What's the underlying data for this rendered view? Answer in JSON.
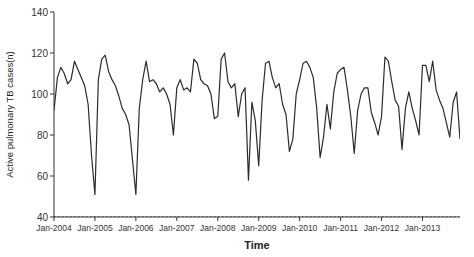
{
  "chart_data": {
    "type": "line",
    "xlabel": "Time",
    "ylabel": "Active pulmonary TB cases(n)",
    "categories": [
      "Jan-2004",
      null,
      null,
      null,
      null,
      null,
      null,
      null,
      null,
      null,
      null,
      null,
      "Jan-2005",
      null,
      null,
      null,
      null,
      null,
      null,
      null,
      null,
      null,
      null,
      null,
      "Jan-2006",
      null,
      null,
      null,
      null,
      null,
      null,
      null,
      null,
      null,
      null,
      null,
      "Jan-2007",
      null,
      null,
      null,
      null,
      null,
      null,
      null,
      null,
      null,
      null,
      null,
      "Jan-2008",
      null,
      null,
      null,
      null,
      null,
      null,
      null,
      null,
      null,
      null,
      null,
      "Jan-2009",
      null,
      null,
      null,
      null,
      null,
      null,
      null,
      null,
      null,
      null,
      null,
      "Jan-2010",
      null,
      null,
      null,
      null,
      null,
      null,
      null,
      null,
      null,
      null,
      null,
      "Jan-2011",
      null,
      null,
      null,
      null,
      null,
      null,
      null,
      null,
      null,
      null,
      null,
      "Jan-2012",
      null,
      null,
      null,
      null,
      null,
      null,
      null,
      null,
      null,
      null,
      null,
      "Jan-2013",
      null,
      null,
      null,
      null,
      null,
      null,
      null,
      null,
      null,
      null,
      null
    ],
    "values": [
      92,
      108,
      113,
      110,
      105,
      107,
      116,
      112,
      108,
      104,
      95,
      70,
      51,
      107,
      117,
      119,
      111,
      107,
      104,
      99,
      93,
      90,
      85,
      68,
      51,
      93,
      107,
      116,
      106,
      107,
      105,
      101,
      103,
      100,
      95,
      80,
      103,
      107,
      102,
      103,
      101,
      117,
      115,
      107,
      105,
      104,
      100,
      88,
      89,
      117,
      120,
      106,
      103,
      105,
      89,
      100,
      103,
      58,
      96,
      87,
      65,
      97,
      115,
      116,
      108,
      103,
      105,
      95,
      90,
      72,
      78,
      100,
      107,
      115,
      116,
      113,
      108,
      93,
      69,
      79,
      95,
      83,
      101,
      110,
      112,
      113,
      102,
      89,
      71,
      92,
      100,
      103,
      103,
      91,
      86,
      80,
      89,
      118,
      116,
      106,
      97,
      94,
      73,
      93,
      101,
      93,
      87,
      80,
      114,
      114,
      106,
      116,
      102,
      97,
      93,
      86,
      79,
      96,
      101,
      78
    ],
    "color": "#2b2b2b",
    "ylim": [
      40,
      140
    ],
    "yticks": [
      40,
      60,
      80,
      100,
      120,
      140
    ],
    "reference_line": 40,
    "grid": false
  }
}
